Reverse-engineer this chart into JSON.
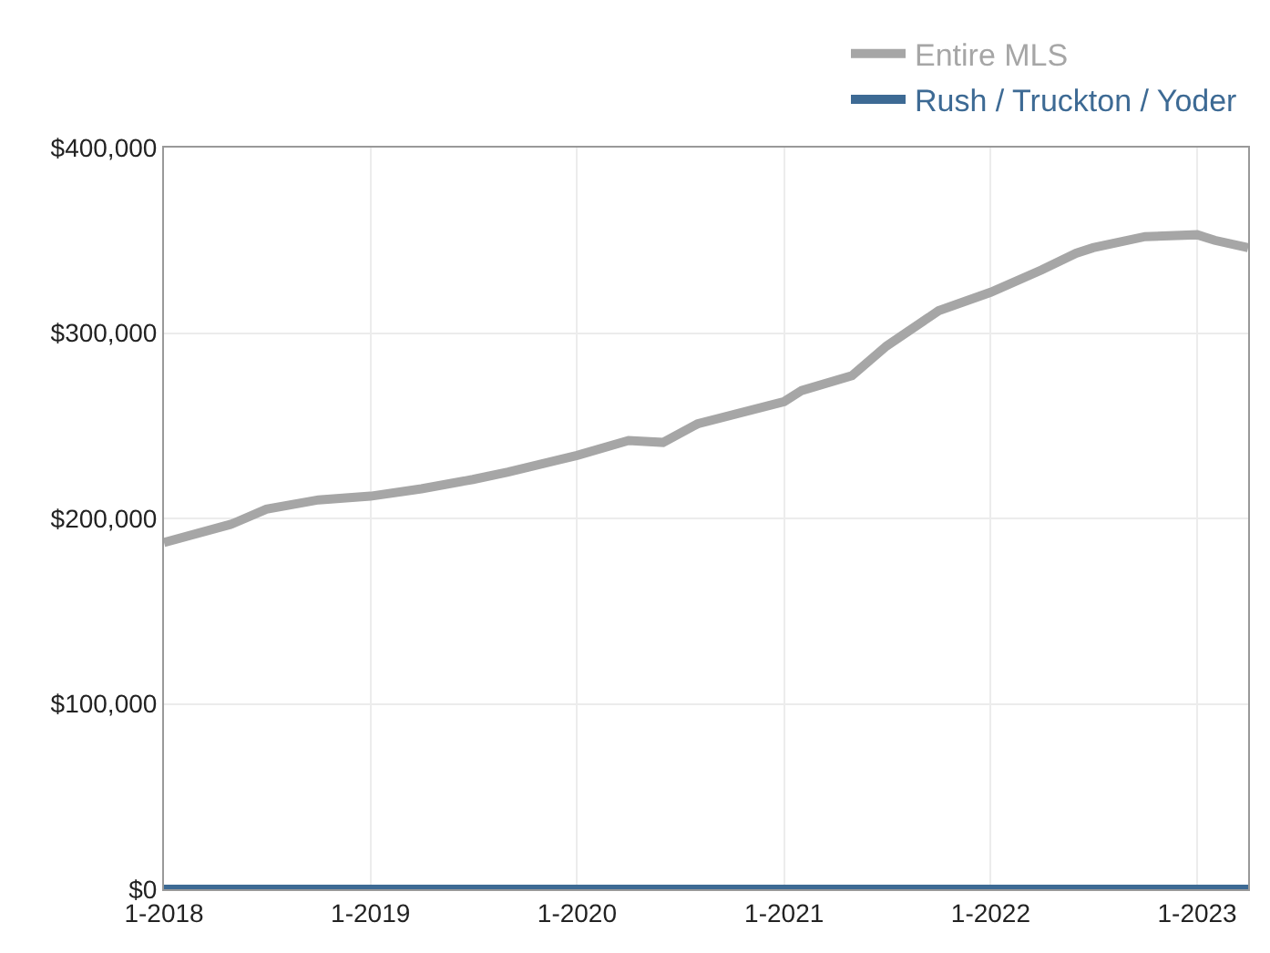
{
  "chart_data": {
    "type": "line",
    "x": [
      "2018-01",
      "2018-05",
      "2018-07",
      "2018-10",
      "2019-01",
      "2019-04",
      "2019-07",
      "2019-09",
      "2020-01",
      "2020-04",
      "2020-06",
      "2020-08",
      "2021-01",
      "2021-02",
      "2021-05",
      "2021-07",
      "2021-10",
      "2022-01",
      "2022-04",
      "2022-06",
      "2022-07",
      "2022-10",
      "2023-01",
      "2023-02",
      "2023-04"
    ],
    "series": [
      {
        "name": "Entire MLS",
        "color": "#a6a6a6",
        "values": [
          187000,
          197000,
          205000,
          210000,
          212000,
          216000,
          221000,
          225000,
          234000,
          242000,
          241000,
          251000,
          263000,
          269000,
          277000,
          293000,
          312000,
          322000,
          334000,
          343000,
          346000,
          352000,
          353000,
          350000,
          346000
        ]
      },
      {
        "name": "Rush / Truckton / Yoder",
        "color": "#3d6a94",
        "x": [
          "2018-01",
          "2023-04"
        ],
        "values": [
          0,
          0
        ]
      }
    ],
    "xlim": [
      "2018-01",
      "2023-04"
    ],
    "xticks": [
      {
        "value": "2018-01",
        "label": "1-2018"
      },
      {
        "value": "2019-01",
        "label": "1-2019"
      },
      {
        "value": "2020-01",
        "label": "1-2020"
      },
      {
        "value": "2021-01",
        "label": "1-2021"
      },
      {
        "value": "2022-01",
        "label": "1-2022"
      },
      {
        "value": "2023-01",
        "label": "1-2023"
      }
    ],
    "ylim": [
      0,
      400000
    ],
    "yticks": [
      {
        "value": 0,
        "label": "$0"
      },
      {
        "value": 100000,
        "label": "$100,000"
      },
      {
        "value": 200000,
        "label": "$200,000"
      },
      {
        "value": 300000,
        "label": "$300,000"
      },
      {
        "value": 400000,
        "label": "$400,000"
      }
    ],
    "grid": true,
    "legend": "top right",
    "line_style": "solid",
    "marker": "none"
  }
}
